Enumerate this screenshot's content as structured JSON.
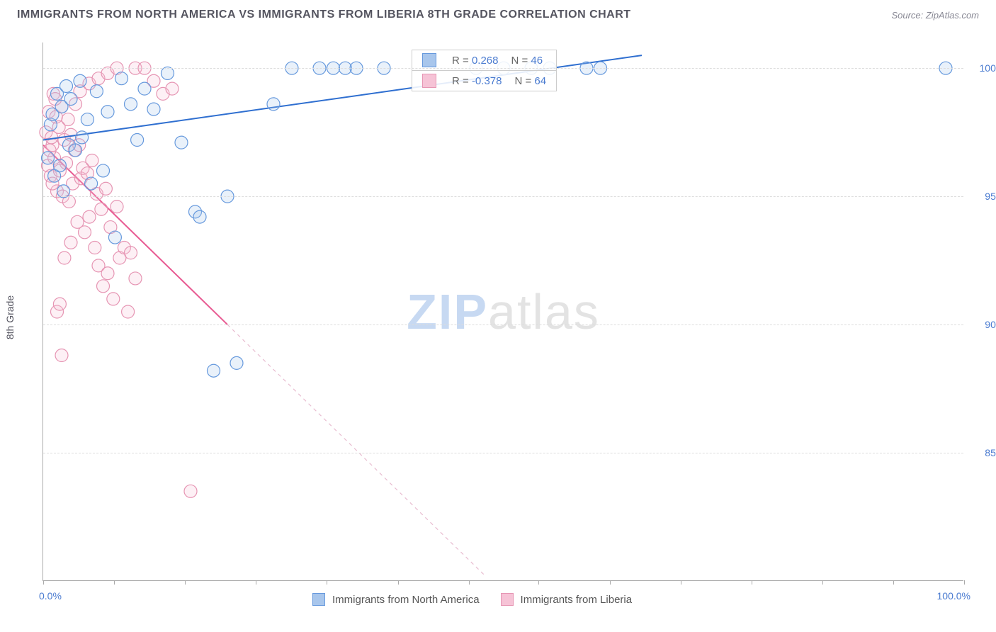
{
  "header": {
    "title": "IMMIGRANTS FROM NORTH AMERICA VS IMMIGRANTS FROM LIBERIA 8TH GRADE CORRELATION CHART",
    "source": "Source: ZipAtlas.com"
  },
  "chart": {
    "type": "scatter",
    "ylabel": "8th Grade",
    "xlim": [
      0,
      100
    ],
    "ylim": [
      80,
      101
    ],
    "yticks": [
      85.0,
      90.0,
      95.0,
      100.0
    ],
    "ytick_labels": [
      "85.0%",
      "90.0%",
      "95.0%",
      "100.0%"
    ],
    "xticks_minor": [
      0,
      7.7,
      15.4,
      23.1,
      30.8,
      38.5,
      46.2,
      53.8,
      61.5,
      69.2,
      76.9,
      84.6,
      92.3,
      100
    ],
    "xtick_left_label": "0.0%",
    "xtick_right_label": "100.0%",
    "grid_color": "#dddddd",
    "axis_color": "#aaaaaa",
    "background_color": "#ffffff",
    "marker_radius": 9,
    "marker_stroke_width": 1.2,
    "marker_fill_opacity": 0.25,
    "line_width": 2,
    "series": [
      {
        "name": "Immigrants from North America",
        "color_stroke": "#6699dd",
        "color_fill": "#a8c6ec",
        "line_color": "#2f6fd0",
        "R": "0.268",
        "N": "46",
        "trend": {
          "x1": 0,
          "y1": 97.2,
          "x2": 65,
          "y2": 100.5
        },
        "points": [
          [
            0.5,
            96.5
          ],
          [
            0.8,
            97.8
          ],
          [
            1.0,
            98.2
          ],
          [
            1.2,
            95.8
          ],
          [
            1.5,
            99.0
          ],
          [
            1.8,
            96.2
          ],
          [
            2.0,
            98.5
          ],
          [
            2.2,
            95.2
          ],
          [
            2.5,
            99.3
          ],
          [
            2.8,
            97.0
          ],
          [
            3.0,
            98.8
          ],
          [
            3.5,
            96.8
          ],
          [
            4.0,
            99.5
          ],
          [
            4.2,
            97.3
          ],
          [
            4.8,
            98.0
          ],
          [
            5.2,
            95.5
          ],
          [
            5.8,
            99.1
          ],
          [
            6.5,
            96.0
          ],
          [
            7.0,
            98.3
          ],
          [
            7.8,
            93.4
          ],
          [
            8.5,
            99.6
          ],
          [
            9.5,
            98.6
          ],
          [
            10.2,
            97.2
          ],
          [
            11.0,
            99.2
          ],
          [
            12.0,
            98.4
          ],
          [
            13.5,
            99.8
          ],
          [
            15.0,
            97.1
          ],
          [
            16.5,
            94.4
          ],
          [
            17.0,
            94.2
          ],
          [
            18.5,
            88.2
          ],
          [
            20.0,
            95.0
          ],
          [
            21.0,
            88.5
          ],
          [
            27.0,
            100.0
          ],
          [
            30.0,
            100.0
          ],
          [
            31.5,
            100.0
          ],
          [
            32.8,
            100.0
          ],
          [
            34.0,
            100.0
          ],
          [
            37.0,
            100.0
          ],
          [
            47.0,
            100.0
          ],
          [
            50.0,
            100.0
          ],
          [
            53.0,
            100.0
          ],
          [
            55.0,
            100.0
          ],
          [
            59.0,
            100.0
          ],
          [
            60.5,
            100.0
          ],
          [
            98.0,
            100.0
          ],
          [
            25.0,
            98.6
          ]
        ]
      },
      {
        "name": "Immigrants from Liberia",
        "color_stroke": "#e695b3",
        "color_fill": "#f6c3d6",
        "line_color": "#e85a92",
        "line_dash": "5,5",
        "R": "-0.378",
        "N": "64",
        "trend_solid": {
          "x1": 0,
          "y1": 97.0,
          "x2": 20,
          "y2": 90.0
        },
        "trend_dash": {
          "x1": 20,
          "y1": 90.0,
          "x2": 48,
          "y2": 80.2
        },
        "points": [
          [
            0.3,
            97.5
          ],
          [
            0.5,
            96.2
          ],
          [
            0.6,
            98.3
          ],
          [
            0.8,
            95.8
          ],
          [
            1.0,
            97.0
          ],
          [
            1.1,
            99.0
          ],
          [
            1.2,
            96.5
          ],
          [
            1.4,
            98.1
          ],
          [
            1.5,
            95.2
          ],
          [
            1.7,
            97.7
          ],
          [
            1.8,
            96.0
          ],
          [
            2.0,
            98.5
          ],
          [
            2.1,
            95.0
          ],
          [
            2.3,
            97.2
          ],
          [
            2.5,
            96.3
          ],
          [
            2.7,
            98.0
          ],
          [
            2.8,
            94.8
          ],
          [
            3.0,
            97.4
          ],
          [
            3.2,
            95.5
          ],
          [
            3.4,
            96.8
          ],
          [
            3.5,
            98.6
          ],
          [
            3.7,
            94.0
          ],
          [
            3.9,
            97.0
          ],
          [
            4.1,
            95.7
          ],
          [
            4.3,
            96.1
          ],
          [
            4.5,
            93.6
          ],
          [
            4.8,
            95.9
          ],
          [
            5.0,
            94.2
          ],
          [
            5.3,
            96.4
          ],
          [
            5.6,
            93.0
          ],
          [
            5.8,
            95.1
          ],
          [
            6.0,
            92.3
          ],
          [
            6.3,
            94.5
          ],
          [
            6.5,
            91.5
          ],
          [
            6.8,
            95.3
          ],
          [
            7.0,
            92.0
          ],
          [
            7.3,
            93.8
          ],
          [
            7.6,
            91.0
          ],
          [
            8.0,
            94.6
          ],
          [
            8.3,
            92.6
          ],
          [
            8.8,
            93.0
          ],
          [
            9.2,
            90.5
          ],
          [
            9.5,
            92.8
          ],
          [
            10.0,
            91.8
          ],
          [
            2.0,
            88.8
          ],
          [
            1.5,
            90.5
          ],
          [
            1.8,
            90.8
          ],
          [
            2.3,
            92.6
          ],
          [
            3.0,
            93.2
          ],
          [
            1.0,
            95.5
          ],
          [
            0.7,
            96.8
          ],
          [
            0.9,
            97.3
          ],
          [
            1.3,
            98.8
          ],
          [
            4.0,
            99.1
          ],
          [
            5.0,
            99.4
          ],
          [
            6.0,
            99.6
          ],
          [
            7.0,
            99.8
          ],
          [
            8.0,
            100.0
          ],
          [
            10.0,
            100.0
          ],
          [
            11.0,
            100.0
          ],
          [
            12.0,
            99.5
          ],
          [
            13.0,
            99.0
          ],
          [
            14.0,
            99.2
          ],
          [
            16.0,
            83.5
          ]
        ]
      }
    ],
    "legend_bottom": [
      {
        "label": "Immigrants from North America",
        "fill": "#a8c6ec",
        "stroke": "#6699dd"
      },
      {
        "label": "Immigrants from Liberia",
        "fill": "#f6c3d6",
        "stroke": "#e695b3"
      }
    ],
    "watermark": {
      "bold": "ZIP",
      "light": "atlas"
    }
  }
}
